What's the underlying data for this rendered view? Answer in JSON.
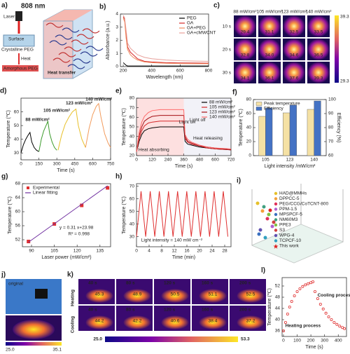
{
  "panel_a": {
    "letter": "a)",
    "wavelength": "808 nm",
    "laser": "Laser",
    "surface": "Surface",
    "crystalline": "Crystalline PEG",
    "heat": "Heat",
    "amorphous": "Amorphous PEG",
    "transfer": "Heat transfer"
  },
  "panel_c": {
    "letter": "c)",
    "columns": [
      "88 mW/cm²",
      "105 mW/cm²",
      "123 mW/cm²",
      "140 mW/cm²"
    ],
    "rows": [
      "10 s",
      "20 s",
      "30 s"
    ],
    "values": [
      [
        "29.4",
        "31.1",
        "32.5",
        "33.5"
      ],
      [
        "32.8",
        "34.0",
        "34.6",
        "36.5"
      ],
      [
        "34.1",
        "36.1",
        "37.6",
        "39.3"
      ]
    ],
    "scale_max": "39.3",
    "scale_min": "29.3"
  },
  "panel_i": {
    "letter": "i)",
    "legend": [
      "HAD@MMHs",
      "DPPCC-5",
      "PEG/CCG/CoTCNT-800",
      "PPM-1.5",
      "MPSPCF-5",
      "NM60M3",
      "PPE3",
      "S3",
      "WPG-4",
      "TCPCF-10",
      "This work"
    ]
  },
  "panel_j": {
    "letter": "j)",
    "label": "original",
    "scale_min": "25.0",
    "scale_max": "35.1"
  },
  "panel_k": {
    "letter": "k)",
    "rows": [
      "Heating",
      "Cooling"
    ],
    "times": [
      "40 s",
      "80 s",
      "120 s",
      "160 s",
      "200 s"
    ],
    "heating": [
      "45.3",
      "48.9",
      "50.5",
      "51.1",
      "52.5"
    ],
    "cooling": [
      "44.2",
      "42.2",
      "40.6",
      "38.4",
      "37.2"
    ],
    "scale_min": "25.0",
    "scale_max": "53.3"
  },
  "chart_data": [
    {
      "type": "line",
      "letter": "b)",
      "xlabel": "Wavelength (nm)",
      "ylabel": "Absorbance (a.u.)",
      "x": [
        200,
        210,
        220,
        230,
        250,
        270,
        300,
        350,
        400,
        500,
        600,
        700,
        800
      ],
      "xlim": [
        180,
        800
      ],
      "xticks": [
        200,
        400,
        600,
        800
      ],
      "ylim": [
        0,
        4
      ],
      "yticks": [
        0,
        1,
        2,
        3,
        4
      ],
      "legend": "upper right",
      "series": [
        {
          "name": "PEG",
          "color": "#000000",
          "values": [
            0.3,
            0.2,
            0.1,
            0.05,
            0.05,
            0.05,
            0.05,
            0.05,
            0.05,
            0.05,
            0.05,
            0.05,
            0.05
          ]
        },
        {
          "name": "GA",
          "color": "#d62728",
          "values": [
            3.8,
            3.6,
            2.5,
            1.5,
            1.1,
            0.9,
            0.6,
            0.4,
            0.35,
            0.3,
            0.28,
            0.27,
            0.26
          ]
        },
        {
          "name": "GA+PEG",
          "color": "#f08a5d",
          "values": [
            3.7,
            3.4,
            2.2,
            1.3,
            0.9,
            0.7,
            0.5,
            0.35,
            0.3,
            0.25,
            0.23,
            0.22,
            0.22
          ]
        },
        {
          "name": "GA+cMWCNT",
          "color": "#e8a09a",
          "values": [
            3.9,
            3.7,
            2.8,
            1.8,
            1.4,
            1.2,
            0.9,
            0.7,
            0.6,
            0.5,
            0.45,
            0.42,
            0.4
          ]
        }
      ]
    },
    {
      "type": "line",
      "letter": "d)",
      "xlabel": "Time (s)",
      "ylabel": "Temperature (℃)",
      "xlim": [
        0,
        750
      ],
      "xticks": [
        0,
        150,
        300,
        450,
        600,
        750
      ],
      "ylim": [
        25,
        70
      ],
      "yticks": [
        30,
        40,
        50,
        60
      ],
      "annotations": [
        "88 mW/cm²",
        "105 mW/cm²",
        "123 mW/cm²",
        "140 mW/cm²"
      ],
      "series": [
        {
          "color": "#000000",
          "x": [
            0,
            20,
            40,
            60,
            75,
            90,
            110,
            130,
            150
          ],
          "values": [
            30,
            36,
            40,
            43,
            45,
            38,
            34,
            32,
            31
          ]
        },
        {
          "color": "#3a9a2a",
          "x": [
            150,
            170,
            190,
            210,
            225,
            240,
            260,
            280,
            300
          ],
          "values": [
            31,
            40,
            46,
            50,
            53,
            44,
            38,
            34,
            32
          ]
        },
        {
          "color": "#e8c02a",
          "x": [
            310,
            340,
            370,
            400,
            430,
            460,
            480,
            510,
            540
          ],
          "values": [
            32,
            43,
            51,
            56,
            60,
            62,
            50,
            40,
            34
          ]
        },
        {
          "color": "#f29b5c",
          "x": [
            540,
            570,
            600,
            630,
            650,
            670,
            700,
            730,
            750
          ],
          "values": [
            34,
            48,
            58,
            64,
            66,
            56,
            44,
            37,
            34
          ]
        }
      ]
    },
    {
      "type": "line",
      "letter": "e)",
      "xlabel": "Time (s)",
      "ylabel": "Temperature (℃)",
      "x": [
        0,
        20,
        40,
        60,
        90,
        120,
        180,
        240,
        300,
        360,
        370,
        390,
        420,
        480,
        540,
        600,
        720
      ],
      "xlim": [
        0,
        720
      ],
      "xticks": [
        0,
        120,
        240,
        360,
        480,
        600,
        720
      ],
      "ylim": [
        20,
        80
      ],
      "yticks": [
        20,
        30,
        40,
        50,
        60,
        70,
        80
      ],
      "legend": "upper right",
      "annotations": [
        "Light on",
        "Light off",
        "Heat absorbing",
        "Heat releasing"
      ],
      "series": [
        {
          "name": "88 mW/cm²",
          "color": "#000000",
          "values": [
            24,
            35,
            42,
            46,
            48,
            49,
            50,
            50,
            50,
            50,
            35,
            32,
            31,
            29,
            28,
            27,
            26
          ]
        },
        {
          "name": "105 mW/cm²",
          "color": "#d62728",
          "values": [
            24,
            38,
            46,
            51,
            54,
            55,
            56,
            56,
            56,
            56,
            38,
            34,
            32,
            30,
            28,
            27,
            26
          ]
        },
        {
          "name": "123 mW/cm²",
          "color": "#a50f15",
          "values": [
            24,
            41,
            50,
            56,
            59,
            61,
            62,
            62,
            62,
            62,
            40,
            35,
            33,
            30,
            29,
            28,
            26
          ]
        },
        {
          "name": "140 mW/cm²",
          "color": "#ff6b6b",
          "values": [
            24,
            44,
            55,
            61,
            65,
            67,
            68,
            68,
            68,
            68,
            42,
            37,
            34,
            31,
            29,
            28,
            27
          ]
        }
      ]
    },
    {
      "type": "bar",
      "letter": "f)",
      "xlabel": "Light intensity /mW/cm²",
      "ylabel": "Temperature (℃)",
      "y2label": "Efficiency (%)",
      "categories": [
        "105",
        "123",
        "140"
      ],
      "ylim": [
        0,
        80
      ],
      "yticks": [
        0,
        20,
        40,
        60,
        80
      ],
      "y2lim": [
        60,
        100
      ],
      "y2ticks": [
        60,
        70,
        80,
        90,
        100
      ],
      "legend": "upper left",
      "series": [
        {
          "name": "Peak temperature",
          "color": "#f5e1a4",
          "values": [
            56,
            61,
            66
          ]
        },
        {
          "name": "Efficiency",
          "color": "#4472c4",
          "axis": "y2",
          "values": [
            94,
            96,
            99
          ]
        }
      ]
    },
    {
      "type": "scatter",
      "letter": "g)",
      "xlabel": "Laser power (mW/cm²)",
      "ylabel": "Temperature (℃)",
      "xlim": [
        84,
        142
      ],
      "xticks": [
        90,
        105,
        120,
        135
      ],
      "ylim": [
        50,
        68
      ],
      "yticks": [
        52,
        56,
        60,
        64,
        68
      ],
      "legend": "upper left",
      "annotations": [
        "y = 0.31 x+23.98",
        "R² = 0.998"
      ],
      "series": [
        {
          "name": "Experimental",
          "color": "#e03030",
          "style": "markers",
          "x": [
            88,
            105,
            123,
            140
          ],
          "values": [
            51.5,
            56.5,
            61.8,
            66.8
          ]
        },
        {
          "name": "Linear fitting",
          "color": "#7030a0",
          "style": "line",
          "x": [
            88,
            140
          ],
          "values": [
            51.3,
            67.4
          ]
        }
      ]
    },
    {
      "type": "line",
      "letter": "h)",
      "xlabel": "Time (min)",
      "ylabel": "Temperature (℃)",
      "xlim": [
        0,
        30
      ],
      "xticks": [
        0,
        4,
        8,
        12,
        16,
        20,
        24,
        28
      ],
      "ylim": [
        22,
        72
      ],
      "yticks": [
        30,
        40,
        50,
        60,
        70
      ],
      "annotations": [
        "Light intensity = 140 mW  cm⁻²"
      ],
      "series": [
        {
          "color": "#e03030",
          "x": [
            0,
            1.45,
            2.9,
            4.35,
            5.8,
            7.25,
            8.7,
            10.15,
            11.6,
            13.05,
            14.5,
            15.95,
            17.4,
            18.85,
            20.3,
            21.75,
            23.2,
            24.65,
            26.1,
            27.55,
            29
          ],
          "values": [
            30,
            66,
            30,
            66,
            30,
            66,
            30,
            66,
            30,
            66,
            30,
            66,
            30,
            66,
            30,
            66,
            30,
            66,
            30,
            66,
            30
          ]
        }
      ]
    },
    {
      "type": "scatter",
      "letter": "l)",
      "xlabel": "Time (s)",
      "ylabel": "Temperature (℃)",
      "xlim": [
        -10,
        460
      ],
      "xticks": [
        0,
        100,
        200,
        300,
        400
      ],
      "ylim": [
        34,
        55
      ],
      "yticks": [
        36,
        40,
        44,
        48,
        52
      ],
      "annotations": [
        "Cooling process",
        "Heating process"
      ],
      "series": [
        {
          "color": "#e03030",
          "style": "markers",
          "x": [
            0,
            15,
            30,
            45,
            60,
            80,
            100,
            120,
            140,
            160,
            180,
            200,
            215,
            230,
            250,
            270,
            290,
            310,
            330,
            350,
            370,
            390,
            410,
            430,
            445
          ],
          "values": [
            36,
            39,
            42,
            44.5,
            46.5,
            48.5,
            50,
            51,
            51.8,
            52.4,
            52.8,
            53.2,
            53.5,
            50,
            47.5,
            45.5,
            43.8,
            42.3,
            41,
            40,
            39,
            38.3,
            37.7,
            37.2,
            36.8
          ]
        }
      ]
    }
  ]
}
